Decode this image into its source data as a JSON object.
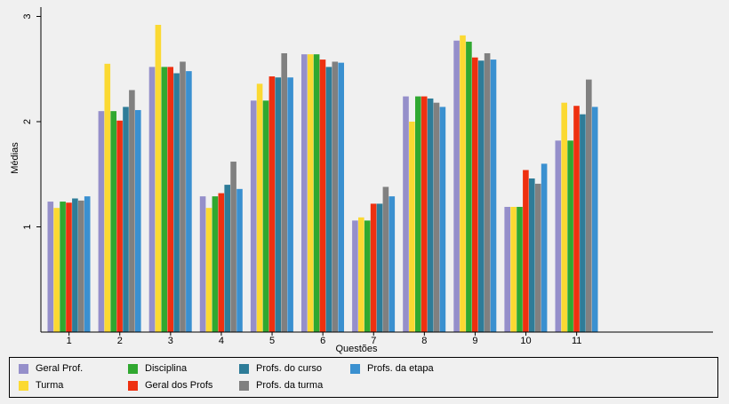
{
  "chart_data": {
    "type": "bar",
    "xlabel": "Questões",
    "ylabel": "Médias",
    "ylim": [
      0,
      3.1
    ],
    "yticks": [
      1,
      2,
      3
    ],
    "grid": false,
    "legend_position": "bottom",
    "categories": [
      "1",
      "2",
      "3",
      "4",
      "5",
      "6",
      "7",
      "8",
      "9",
      "10",
      "11"
    ],
    "series": [
      {
        "name": "Geral Prof.",
        "color": "#958fca",
        "values": [
          1.24,
          2.1,
          2.52,
          1.29,
          2.2,
          2.64,
          1.06,
          2.24,
          2.77,
          1.19,
          1.82
        ]
      },
      {
        "name": "Turma",
        "color": "#fbd932",
        "values": [
          1.18,
          2.55,
          2.92,
          1.18,
          2.36,
          2.64,
          1.09,
          2.0,
          2.82,
          1.19,
          2.18
        ]
      },
      {
        "name": "Disciplina",
        "color": "#30a830",
        "values": [
          1.24,
          2.1,
          2.52,
          1.29,
          2.2,
          2.64,
          1.06,
          2.24,
          2.76,
          1.19,
          1.82
        ]
      },
      {
        "name": "Geral dos Profs",
        "color": "#ee3010",
        "values": [
          1.23,
          2.01,
          2.52,
          1.32,
          2.43,
          2.59,
          1.22,
          2.24,
          2.61,
          1.54,
          2.15
        ]
      },
      {
        "name": "Profs. do curso",
        "color": "#2e7c98",
        "values": [
          1.27,
          2.14,
          2.46,
          1.4,
          2.42,
          2.52,
          1.22,
          2.22,
          2.58,
          1.46,
          2.07
        ]
      },
      {
        "name": "Profs. da turma",
        "color": "#808080",
        "values": [
          1.25,
          2.3,
          2.57,
          1.62,
          2.65,
          2.57,
          1.38,
          2.18,
          2.65,
          1.41,
          2.4
        ]
      },
      {
        "name": "Profs. da etapa",
        "color": "#3a90d0",
        "values": [
          1.29,
          2.11,
          2.48,
          1.36,
          2.42,
          2.56,
          1.29,
          2.14,
          2.59,
          1.6,
          2.14
        ]
      }
    ]
  }
}
